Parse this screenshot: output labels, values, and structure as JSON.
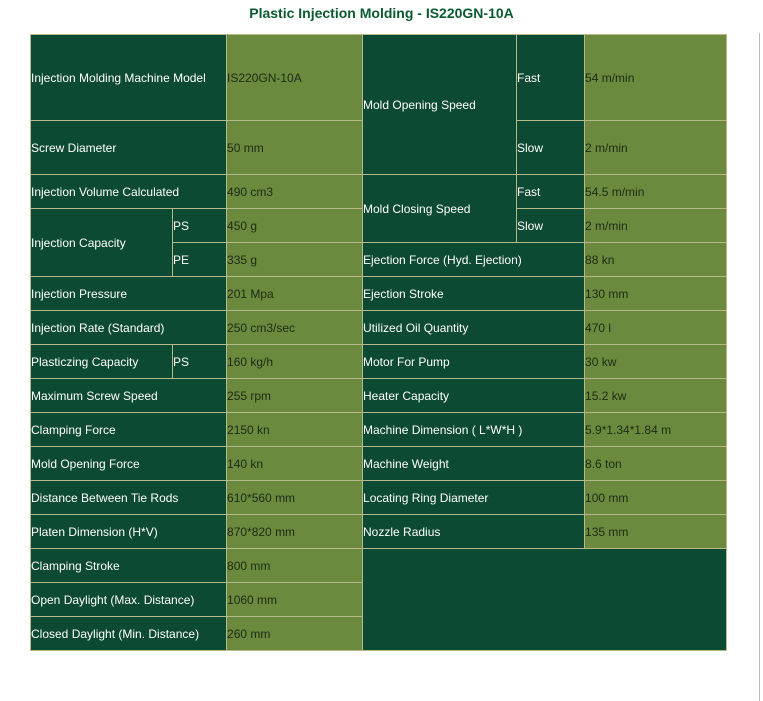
{
  "title": "Plastic Injection Molding - IS220GN-10A",
  "rows": {
    "model": {
      "label": "Injection Molding Machine Model",
      "value": "IS220GN-10A"
    },
    "screw_diameter": {
      "label": "Screw Diameter",
      "value": "50 mm"
    },
    "injection_volume": {
      "label": "Injection Volume Calculated",
      "value": "490 cm3"
    },
    "injection_capacity": {
      "label": "Injection Capacity",
      "ps_label": "PS",
      "ps_value": "450 g",
      "pe_label": "PE",
      "pe_value": "335 g"
    },
    "injection_pressure": {
      "label": "Injection Pressure",
      "value": "201 Mpa"
    },
    "injection_rate": {
      "label": "Injection Rate (Standard)",
      "value": "250 cm3/sec"
    },
    "plasticizing_capacity": {
      "label": "Plasticzing Capacity",
      "sub_label": "PS",
      "value": "160 kg/h"
    },
    "max_screw_speed": {
      "label": "Maximum Screw Speed",
      "value": "255 rpm"
    },
    "clamping_force": {
      "label": "Clamping Force",
      "value": "2150 kn"
    },
    "mold_opening_force": {
      "label": "Mold Opening Force",
      "value": "140 kn"
    },
    "tie_rods": {
      "label": "Distance Between Tie Rods",
      "value": "610*560 mm"
    },
    "platen_dimension": {
      "label": "Platen Dimension (H*V)",
      "value": "870*820 mm"
    },
    "clamping_stroke": {
      "label": "Clamping Stroke",
      "value": "800 mm"
    },
    "open_daylight": {
      "label": "Open Daylight (Max. Distance)",
      "value": "1060 mm"
    },
    "closed_daylight": {
      "label": "Closed Daylight (Min. Distance)",
      "value": "260 mm"
    },
    "mold_opening_speed": {
      "label": "Mold Opening Speed",
      "fast_label": "Fast",
      "fast_value": "54 m/min",
      "slow_label": "Slow",
      "slow_value": "2 m/min"
    },
    "mold_closing_speed": {
      "label": "Mold Closing Speed",
      "fast_label": "Fast",
      "fast_value": "54.5 m/min",
      "slow_label": "Slow",
      "slow_value": "2 m/min"
    },
    "ejection_force": {
      "label": "Ejection Force (Hyd. Ejection)",
      "value": "88 kn"
    },
    "ejection_stroke": {
      "label": "Ejection Stroke",
      "value": "130 mm"
    },
    "oil_quantity": {
      "label": "Utilized Oil Quantity",
      "value": "470 l"
    },
    "motor_pump": {
      "label": "Motor For Pump",
      "value": "30 kw"
    },
    "heater_capacity": {
      "label": "Heater Capacity",
      "value": "15.2 kw"
    },
    "machine_dimension": {
      "label": "Machine Dimension ( L*W*H )",
      "value": "5.9*1.34*1.84 m"
    },
    "machine_weight": {
      "label": "Machine Weight",
      "value": "8.6 ton"
    },
    "locating_ring": {
      "label": "Locating Ring Diameter",
      "value": "100 mm"
    },
    "nozzle_radius": {
      "label": "Nozzle Radius",
      "value": "135 mm"
    }
  }
}
